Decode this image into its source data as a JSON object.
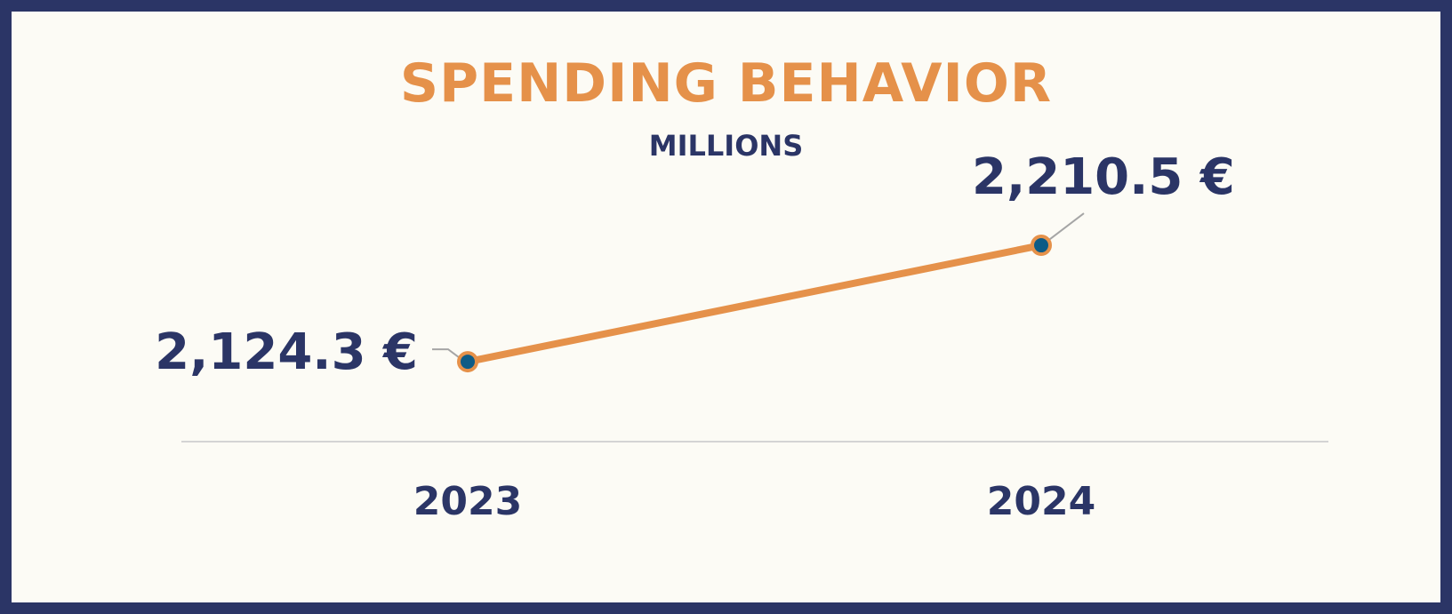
{
  "chart_data": {
    "type": "line",
    "title": "SPENDING BEHAVIOR",
    "subtitle": "MILLIONS",
    "categories": [
      "2023",
      "2024"
    ],
    "series": [
      {
        "values": [
          2124.3,
          2210.5
        ],
        "labels": [
          "2,124.3 €",
          "2,210.5 €"
        ]
      }
    ],
    "ylim": [
      2050,
      2300
    ],
    "grid": false,
    "legend": "none",
    "colors": {
      "line": "#e5914a",
      "marker_fill": "#0d5b86",
      "text": "#2b3566",
      "title": "#e5914a",
      "frame": "#2b3566",
      "background": "#fcfbf5",
      "axis": "#d4d4d4",
      "leader": "#a5a5a5"
    }
  }
}
